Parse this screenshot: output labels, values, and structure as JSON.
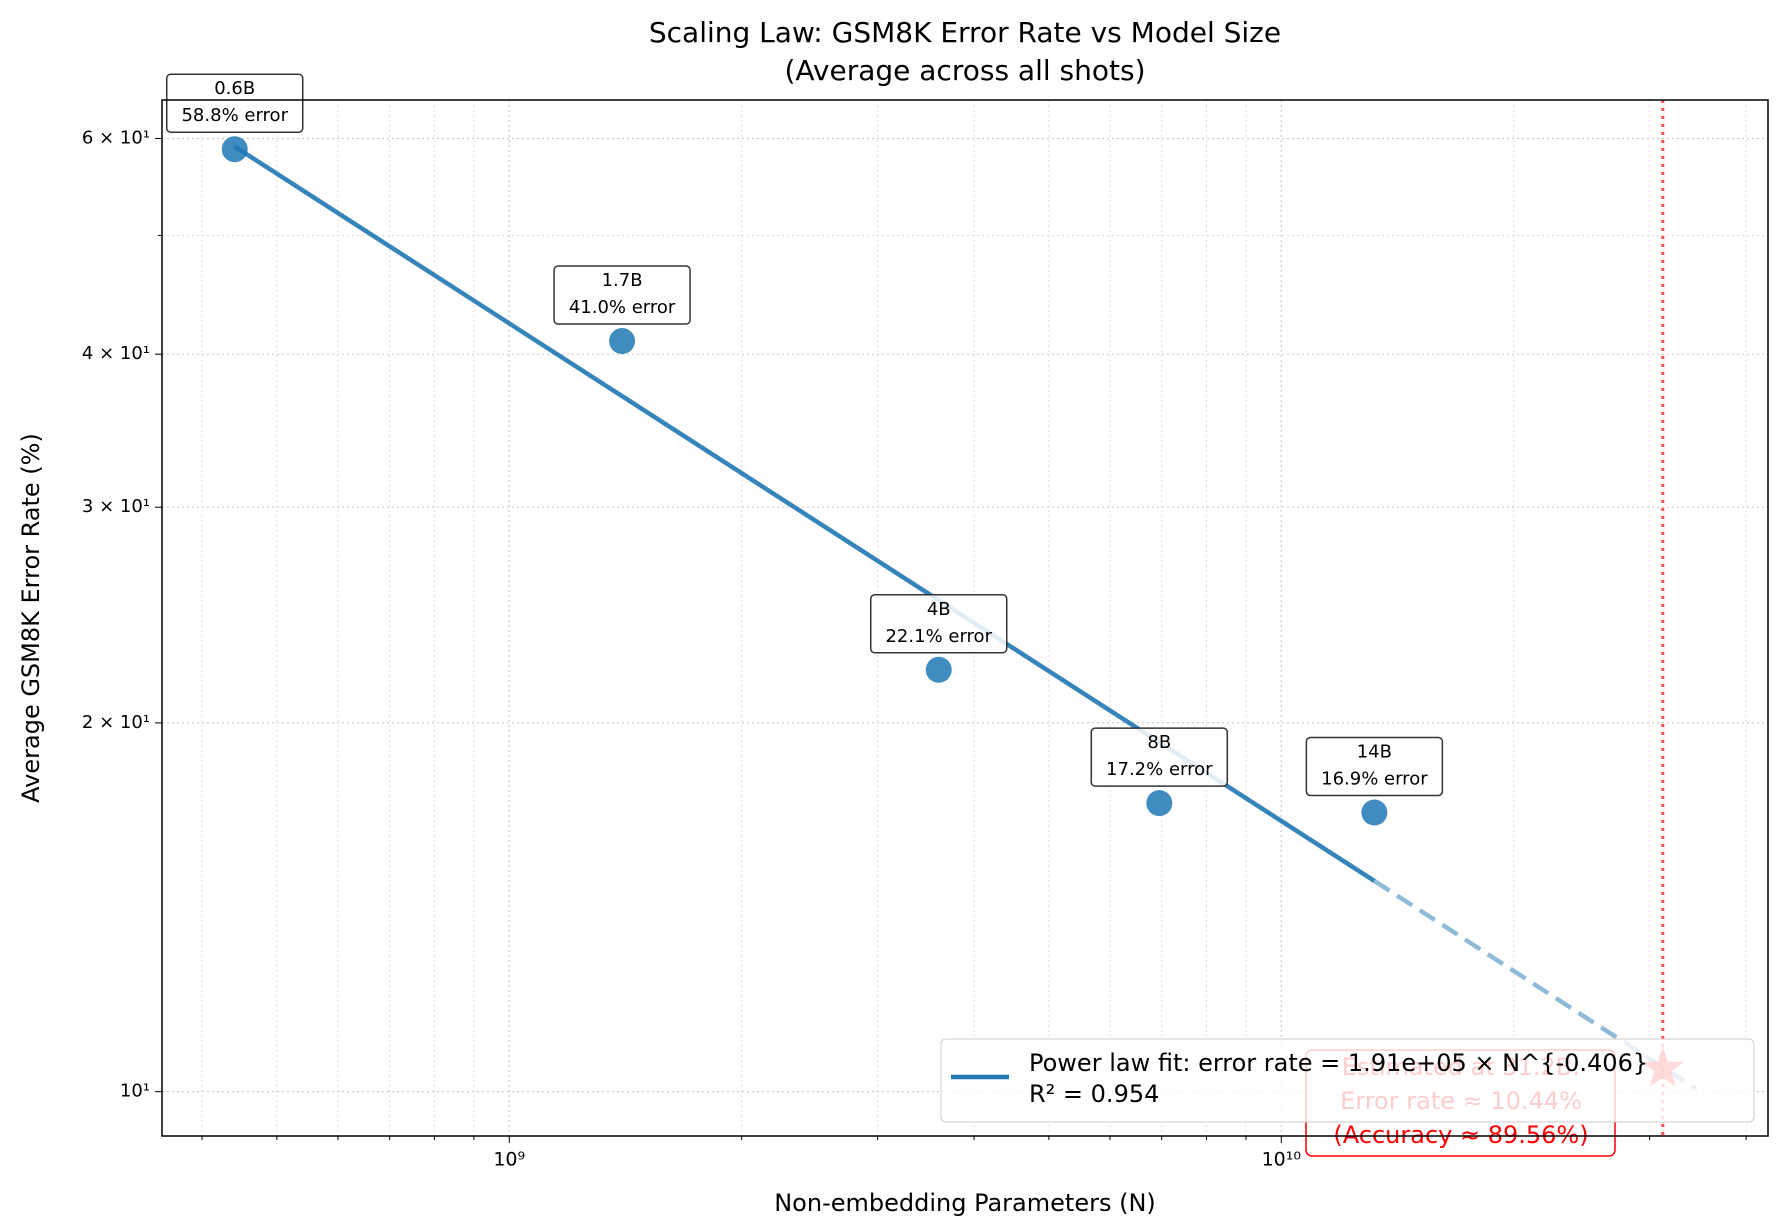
{
  "chart_data": {
    "type": "scatter",
    "title": "Scaling Law: GSM8K Error Rate vs Model Size",
    "subtitle": "(Average across all shots)",
    "xlabel": "Non-embedding Parameters (N)",
    "ylabel": "Average GSM8K Error Rate (%)",
    "xscale": "log",
    "yscale": "log",
    "grid": true,
    "xlim": [
      355000000,
      42700000000
    ],
    "ylim": [
      9.2,
      64.5
    ],
    "xticks": [
      {
        "value": 1000000000,
        "label": "10⁹"
      },
      {
        "value": 10000000000,
        "label": "10¹⁰"
      }
    ],
    "xminorticks": [
      400000000,
      500000000,
      600000000,
      700000000,
      800000000,
      900000000,
      2000000000,
      3000000000,
      4000000000,
      5000000000,
      6000000000,
      7000000000,
      8000000000,
      9000000000,
      20000000000,
      30000000000,
      40000000000
    ],
    "yticks": [
      {
        "value": 10,
        "label": "10¹"
      },
      {
        "value": 20,
        "label": "2 × 10¹"
      },
      {
        "value": 30,
        "label": "3 × 10¹"
      },
      {
        "value": 40,
        "label": "4 × 10¹"
      },
      {
        "value": 60,
        "label": "6 × 10¹"
      }
    ],
    "yminorticks": [
      50
    ],
    "points": {
      "color": "#1f77b4",
      "x": [
        441000000,
        1400000000,
        3600000000,
        6950000000,
        13200000000
      ],
      "values": [
        58.8,
        41.0,
        22.1,
        17.2,
        16.9
      ],
      "point_labels": [
        "0.6B",
        "1.7B",
        "4B",
        "8B",
        "14B"
      ],
      "value_labels": [
        "58.8% error",
        "41.0% error",
        "22.1% error",
        "17.2% error",
        "16.9% error"
      ]
    },
    "fit": {
      "name": "Power law fit: error rate = 1.91e+05 × N^{-0.406}",
      "r2_label": "R² = 0.954",
      "color": "#1f77b4",
      "x": [
        441000000,
        13200000000
      ],
      "values": [
        59.1,
        14.86
      ],
      "extrapolation_x": [
        13200000000,
        34500000000
      ],
      "extrapolation_values": [
        14.86,
        10.05
      ]
    },
    "estimate": {
      "color": "#ff0000",
      "x": 31200000000,
      "value": 10.44,
      "labels": [
        "Estimated at 31.2B:",
        "Error rate ≈ 10.44%",
        "(Accuracy ≈ 89.56%)"
      ]
    },
    "legend": "lower right"
  }
}
